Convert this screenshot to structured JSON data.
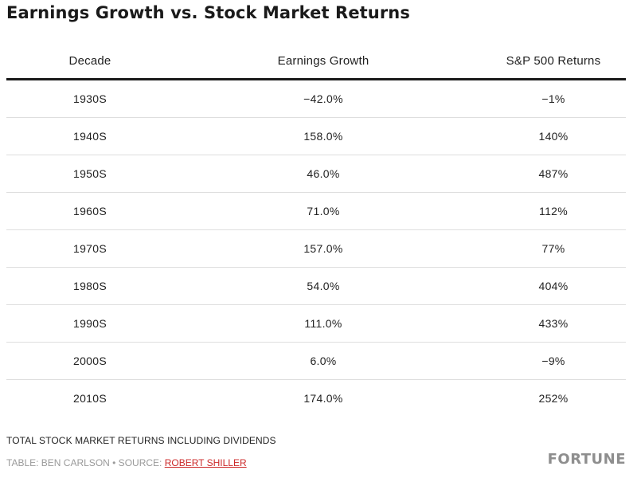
{
  "title": "Earnings Growth vs. Stock Market Returns",
  "chart_data": {
    "type": "table",
    "title": "Earnings Growth vs. Stock Market Returns",
    "columns": [
      "Decade",
      "Earnings Growth",
      "S&P 500 Returns"
    ],
    "rows": [
      [
        "1930S",
        "−42.0%",
        "−1%"
      ],
      [
        "1940S",
        "158.0%",
        "140%"
      ],
      [
        "1950S",
        "46.0%",
        "487%"
      ],
      [
        "1960S",
        "71.0%",
        "112%"
      ],
      [
        "1970S",
        "157.0%",
        "77%"
      ],
      [
        "1980S",
        "54.0%",
        "404%"
      ],
      [
        "1990S",
        "111.0%",
        "433%"
      ],
      [
        "2000S",
        "6.0%",
        "−9%"
      ],
      [
        "2010S",
        "174.0%",
        "252%"
      ]
    ]
  },
  "footer": {
    "note": "TOTAL STOCK MARKET RETURNS INCLUDING DIVIDENDS",
    "credit_prefix": "TABLE: BEN CARLSON • SOURCE: ",
    "source_name": "ROBERT SHILLER",
    "brand": "FORTUNE"
  },
  "colors": {
    "source_link": "#cc2a2a",
    "header_rule": "#1a1a1a",
    "row_rule": "#dedede",
    "muted_text": "#9a9a9a"
  }
}
